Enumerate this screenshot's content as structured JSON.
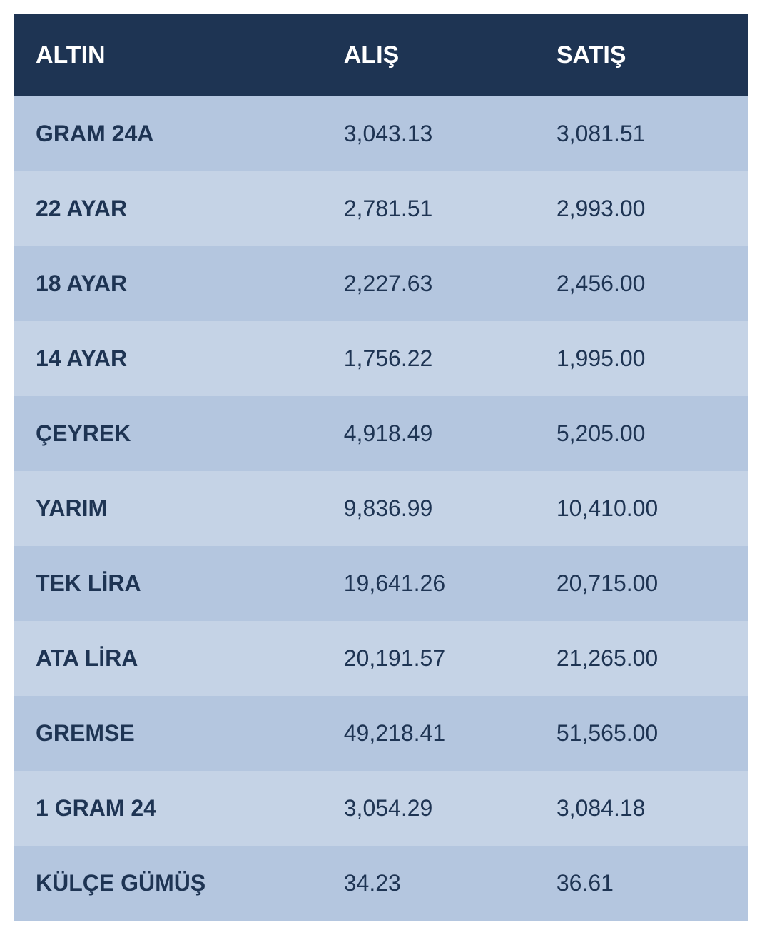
{
  "table": {
    "type": "table",
    "header_bg_color": "#1e3453",
    "header_text_color": "#ffffff",
    "row_color_light": "#b4c6df",
    "row_color_lighter": "#c5d3e6",
    "cell_text_color": "#1e3453",
    "header_fontsize": 34,
    "cell_fontsize": 32,
    "columns": [
      {
        "key": "altin",
        "label": "ALTIN",
        "width_pct": 42,
        "bold": true
      },
      {
        "key": "alis",
        "label": "ALIŞ",
        "width_pct": 29,
        "bold": false
      },
      {
        "key": "satis",
        "label": "SATIŞ",
        "width_pct": 29,
        "bold": false
      }
    ],
    "rows": [
      {
        "altin": "GRAM 24A",
        "alis": "3,043.13",
        "satis": "3,081.51"
      },
      {
        "altin": "22 AYAR",
        "alis": "2,781.51",
        "satis": "2,993.00"
      },
      {
        "altin": "18 AYAR",
        "alis": "2,227.63",
        "satis": "2,456.00"
      },
      {
        "altin": "14 AYAR",
        "alis": "1,756.22",
        "satis": "1,995.00"
      },
      {
        "altin": "ÇEYREK",
        "alis": "4,918.49",
        "satis": "5,205.00"
      },
      {
        "altin": "YARIM",
        "alis": "9,836.99",
        "satis": "10,410.00"
      },
      {
        "altin": "TEK LİRA",
        "alis": "19,641.26",
        "satis": "20,715.00"
      },
      {
        "altin": "ATA LİRA",
        "alis": "20,191.57",
        "satis": "21,265.00"
      },
      {
        "altin": "GREMSE",
        "alis": "49,218.41",
        "satis": "51,565.00"
      },
      {
        "altin": "1 GRAM 24",
        "alis": "3,054.29",
        "satis": "3,084.18"
      },
      {
        "altin": "KÜLÇE GÜMÜŞ",
        "alis": "34.23",
        "satis": "36.61"
      }
    ]
  }
}
